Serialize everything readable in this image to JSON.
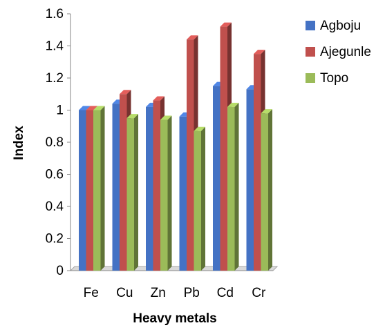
{
  "chart_data": {
    "type": "bar",
    "title": "",
    "xlabel": "Heavy metals",
    "ylabel": "Index",
    "categories": [
      "Fe",
      "Cu",
      "Zn",
      "Pb",
      "Cd",
      "Cr"
    ],
    "series": [
      {
        "name": "Agboju",
        "values": [
          1.0,
          1.04,
          1.02,
          0.96,
          1.15,
          1.13
        ],
        "color": "#4472C4"
      },
      {
        "name": "Ajegunle",
        "values": [
          1.0,
          1.1,
          1.06,
          1.44,
          1.52,
          1.35
        ],
        "color": "#C0504D"
      },
      {
        "name": "Topo",
        "values": [
          1.0,
          0.95,
          0.94,
          0.87,
          1.02,
          0.98
        ],
        "color": "#9BBB59"
      }
    ],
    "ylim": [
      0,
      1.6
    ],
    "yticks": [
      "0",
      "0.2",
      "0.4",
      "0.6",
      "0.8",
      "1",
      "1.2",
      "1.4",
      "1.6"
    ],
    "legend_position": "right",
    "grid": false,
    "style": "3d-clustered-column"
  }
}
